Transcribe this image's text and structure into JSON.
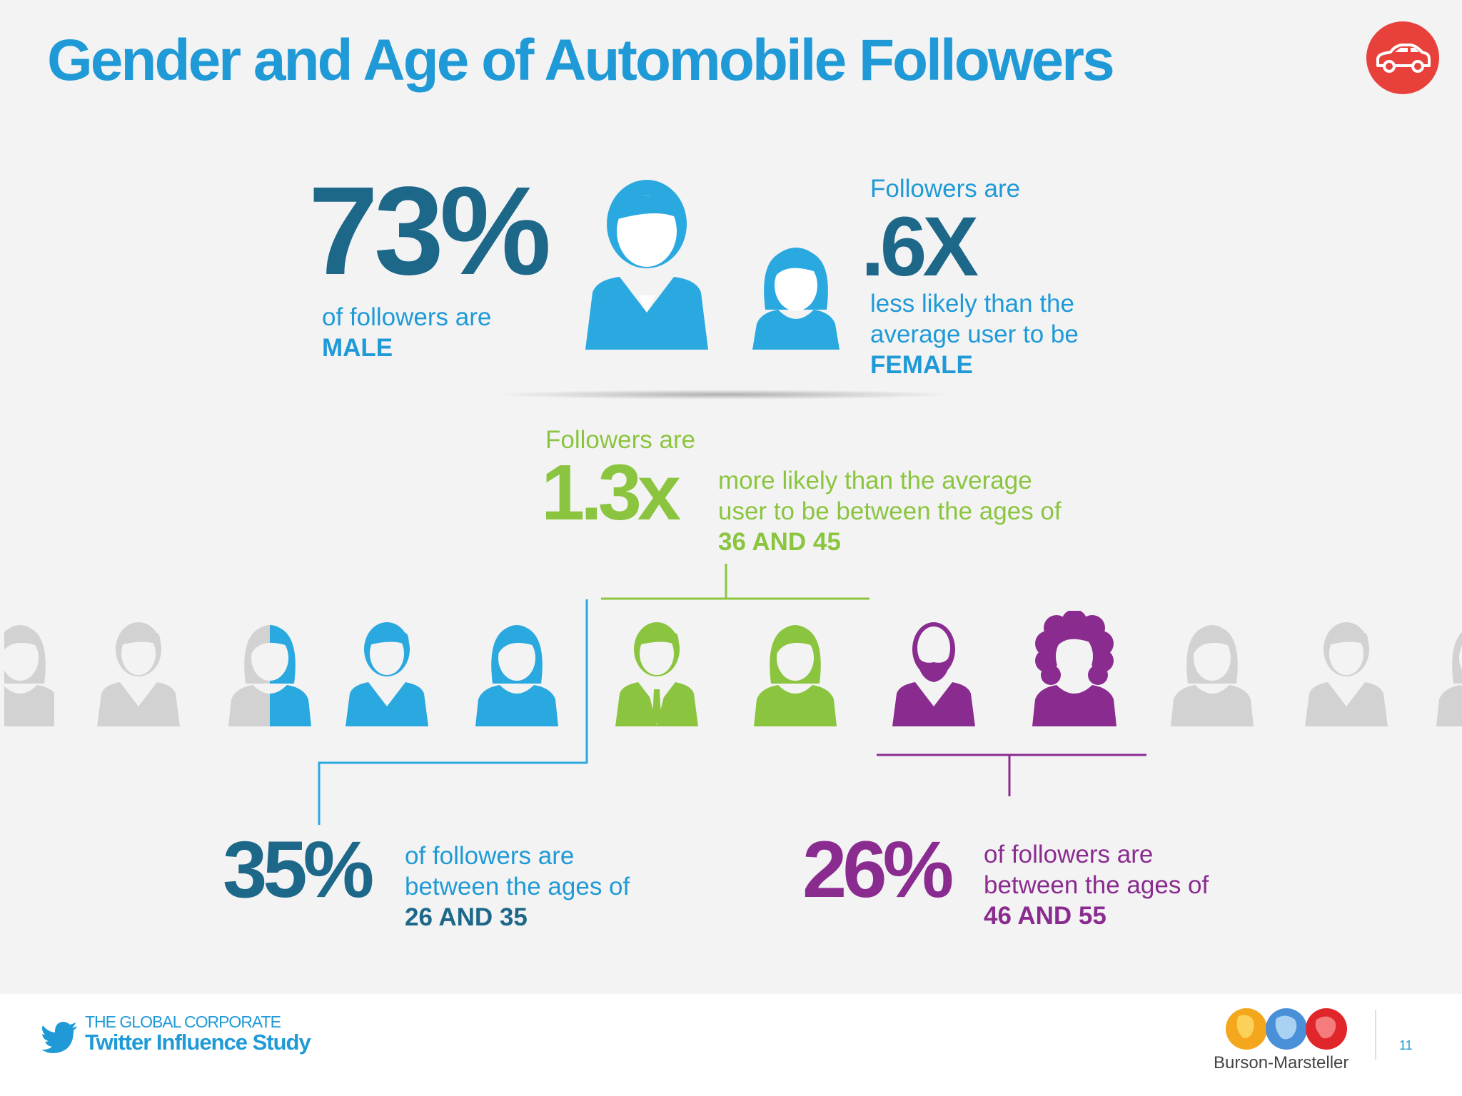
{
  "title": "Gender and Age of Automobile Followers",
  "header_icon": "car-icon",
  "male_stat": {
    "value": "73%",
    "line1": "of followers are",
    "emphasis": "MALE"
  },
  "female_stat": {
    "intro": "Followers are",
    "value": ".6X",
    "line1": "less likely than the",
    "line2": "average user to be",
    "emphasis": "FEMALE"
  },
  "age_36_45": {
    "intro": "Followers are",
    "value": "1.3x",
    "line1": "more likely than the average",
    "line2": "user to be between the ages of",
    "emphasis": "36 AND 45"
  },
  "age_26_35": {
    "value": "35%",
    "line1": "of followers are",
    "line2": "between the ages of",
    "emphasis": "26 AND 35"
  },
  "age_46_55": {
    "value": "26%",
    "line1": "of followers are",
    "line2": "between the ages of",
    "emphasis": "46 AND 55"
  },
  "colors": {
    "title_blue": "#1f9ad6",
    "dark_blue": "#1d6789",
    "light_blue": "#2aa8e0",
    "green": "#8bc53f",
    "purple": "#8a2c8f",
    "gray": "#d2d2d2",
    "car_red": "#e8413c"
  },
  "footer": {
    "study_line1": "THE GLOBAL CORPORATE",
    "study_line2": "Twitter Influence Study",
    "brand": "Burson-Marsteller",
    "page_number": "11"
  }
}
